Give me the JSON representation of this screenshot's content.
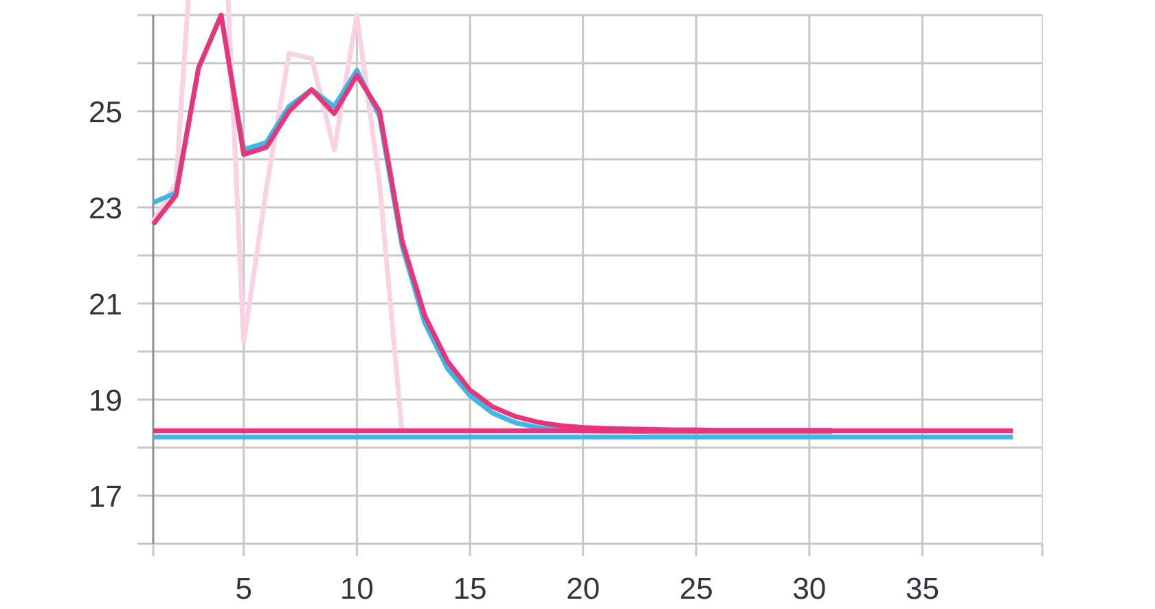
{
  "chart_data": {
    "type": "line",
    "title": "",
    "xlabel": "",
    "ylabel": "",
    "xlim": [
      0.3,
      40.3
    ],
    "ylim": [
      16.0,
      27.0
    ],
    "x_ticks": [
      5,
      10,
      15,
      20,
      25,
      30,
      35
    ],
    "y_ticks": [
      17,
      19,
      21,
      23,
      25
    ],
    "grid": true,
    "legend": "none",
    "series": [
      {
        "color": "#f9d3e3",
        "role": "raw",
        "x": [
          1,
          2,
          3,
          4,
          5,
          6,
          7,
          8,
          9,
          10,
          11,
          12
        ],
        "y": [
          22.7,
          23.5,
          30.5,
          30.5,
          20.2,
          23.4,
          26.2,
          26.1,
          24.2,
          27.0,
          23.5,
          18.3
        ]
      },
      {
        "color": "#3bb8e8",
        "role": "smoothed",
        "x": [
          1,
          2,
          3,
          4,
          5,
          6,
          7,
          8,
          9,
          10,
          11,
          12,
          13,
          14,
          15,
          16,
          17,
          18,
          19,
          20,
          21,
          22,
          23,
          24,
          25,
          26,
          27,
          28,
          29,
          30,
          31
        ],
        "y": [
          23.1,
          23.3,
          25.9,
          27.0,
          24.2,
          24.35,
          25.1,
          25.45,
          25.1,
          25.85,
          24.9,
          22.2,
          20.6,
          19.65,
          19.08,
          18.72,
          18.52,
          18.42,
          18.37,
          18.35,
          18.34,
          18.34,
          18.33,
          18.33,
          18.33,
          18.33,
          18.33,
          18.33,
          18.33,
          18.33,
          18.33
        ]
      },
      {
        "color": "#3bb8e8",
        "role": "baseline",
        "x": [
          1,
          39
        ],
        "y": [
          18.22,
          18.22
        ]
      },
      {
        "color": "#e8357a",
        "role": "smoothed",
        "x": [
          1,
          2,
          3,
          4,
          5,
          6,
          7,
          8,
          9,
          10,
          11,
          12,
          13,
          14,
          15,
          16,
          17,
          18,
          19,
          20,
          21,
          22,
          23,
          24,
          25,
          26,
          27,
          28,
          29,
          30,
          31
        ],
        "y": [
          22.65,
          23.25,
          25.9,
          27.0,
          24.1,
          24.25,
          25.0,
          25.45,
          24.95,
          25.75,
          25.0,
          22.3,
          20.75,
          19.8,
          19.2,
          18.85,
          18.65,
          18.53,
          18.46,
          18.42,
          18.4,
          18.39,
          18.38,
          18.37,
          18.37,
          18.36,
          18.36,
          18.36,
          18.36,
          18.36,
          18.36
        ]
      },
      {
        "color": "#e8357a",
        "role": "baseline",
        "x": [
          1,
          39
        ],
        "y": [
          18.35,
          18.35
        ]
      }
    ]
  }
}
